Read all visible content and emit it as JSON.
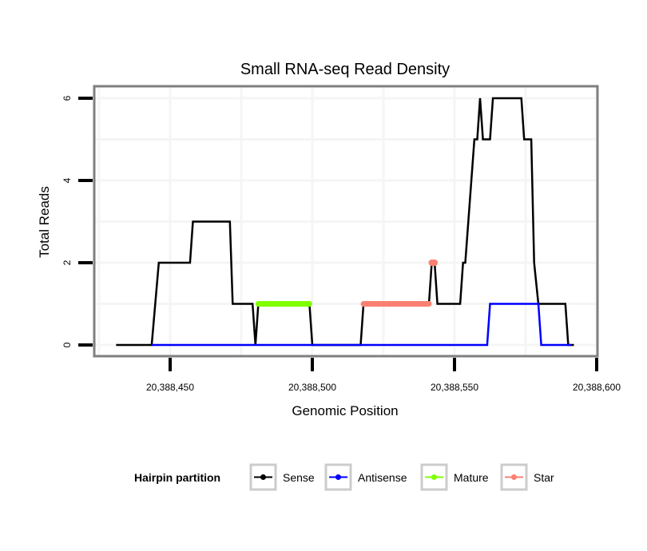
{
  "chart_data": {
    "type": "line",
    "title": "Small RNA-seq Read Density",
    "xlabel": "Genomic Position",
    "ylabel": "Total Reads",
    "xlim": [
      20388427,
      20388601
    ],
    "ylim": [
      -0.25,
      6.3
    ],
    "x_ticks": [
      20388450,
      20388500,
      20388550,
      20388600
    ],
    "x_tick_labels": [
      "20,388,450",
      "20,388,500",
      "20,388,550",
      "20,388,600"
    ],
    "y_ticks": [
      0,
      2,
      4,
      6
    ],
    "y_tick_labels": [
      "0",
      "2",
      "4",
      "6"
    ],
    "grid": true,
    "legend": {
      "title": "Hairpin partition",
      "position": "bottom",
      "entries": [
        "Sense",
        "Antisense",
        "Mature",
        "Star"
      ]
    },
    "series": [
      {
        "name": "Sense",
        "color": "#000000",
        "points": [
          [
            20388431,
            0
          ],
          [
            20388443.5,
            0
          ],
          [
            20388446,
            2
          ],
          [
            20388457,
            2
          ],
          [
            20388458,
            3
          ],
          [
            20388471,
            3
          ],
          [
            20388472,
            1
          ],
          [
            20388479,
            1
          ],
          [
            20388480,
            0
          ],
          [
            20388481,
            1
          ],
          [
            20388499,
            1
          ],
          [
            20388500,
            0
          ],
          [
            20388517,
            0
          ],
          [
            20388518,
            1
          ],
          [
            20388541,
            1
          ],
          [
            20388542,
            2
          ],
          [
            20388543,
            2
          ],
          [
            20388544,
            1
          ],
          [
            20388552,
            1
          ],
          [
            20388553,
            2
          ],
          [
            20388553.8,
            2
          ],
          [
            20388557,
            5
          ],
          [
            20388558,
            5
          ],
          [
            20388559,
            6
          ],
          [
            20388560,
            5
          ],
          [
            20388562.5,
            5
          ],
          [
            20388563.5,
            6
          ],
          [
            20388573.5,
            6
          ],
          [
            20388574.5,
            5
          ],
          [
            20388577,
            5
          ],
          [
            20388578,
            2
          ],
          [
            20388579.5,
            1
          ],
          [
            20388589,
            1
          ],
          [
            20388590,
            0
          ],
          [
            20388592,
            0
          ]
        ]
      },
      {
        "name": "Antisense",
        "color": "#0000ff",
        "points": [
          [
            20388443.5,
            0
          ],
          [
            20388561.5,
            0
          ],
          [
            20388562.5,
            1
          ],
          [
            20388579.5,
            1
          ],
          [
            20388580.5,
            0
          ],
          [
            20388591,
            0
          ]
        ]
      },
      {
        "name": "Mature",
        "color": "#7fff00",
        "points": [
          [
            20388481,
            1
          ],
          [
            20388499,
            1
          ]
        ]
      },
      {
        "name": "Star",
        "color": "#fa8072",
        "points": [
          [
            20388518,
            1
          ],
          [
            20388541,
            1
          ]
        ],
        "extra_points": [
          [
            20388542,
            2
          ],
          [
            20388543,
            2
          ]
        ]
      }
    ]
  }
}
